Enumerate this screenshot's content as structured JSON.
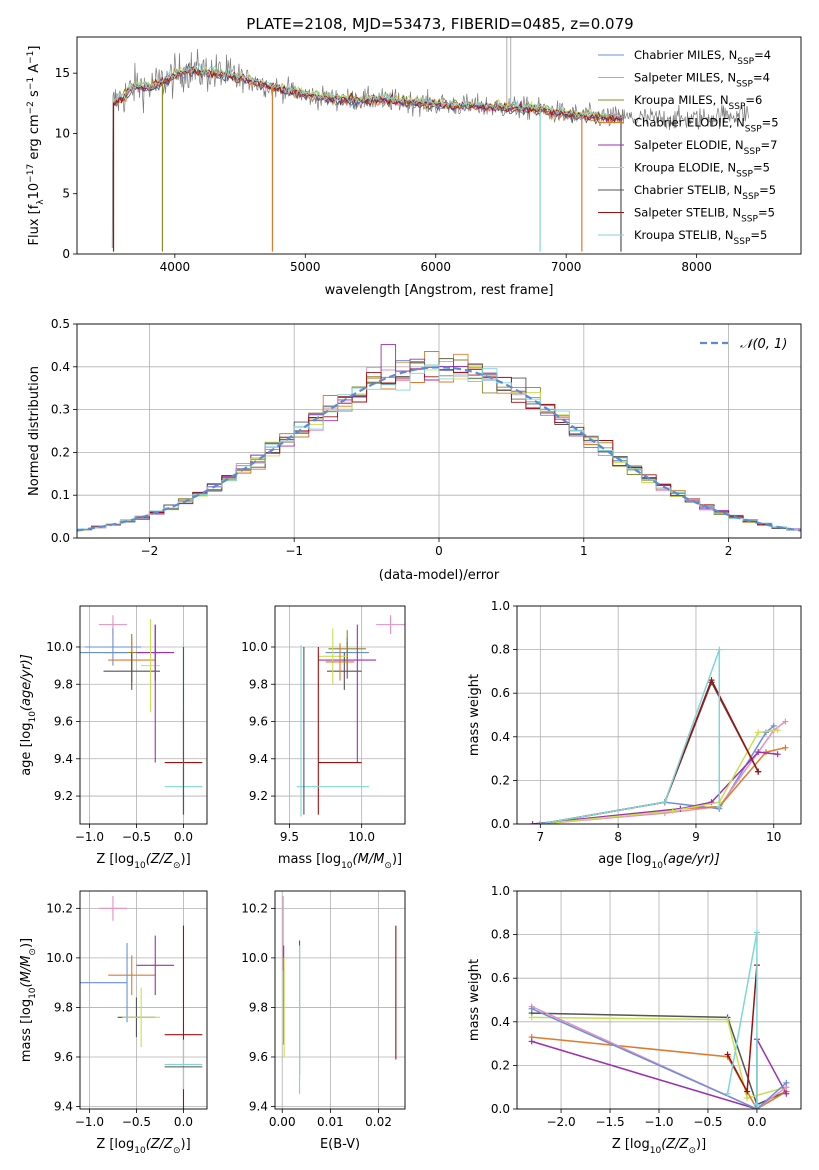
{
  "figure": {
    "title": "PLATE=2108, MJD=53473, FIBERID=0485, z=0.079"
  },
  "chart_data": [
    {
      "id": "spectrum",
      "type": "line",
      "xlabel": "wavelength [Angstrom, rest frame]",
      "ylabel": "Flux [f",
      "ylabel_sub": "λ",
      "ylabel_mid": "10",
      "ylabel_sup1": "−17",
      "ylabel_mid2": " erg cm",
      "ylabel_sup2": "−2",
      "ylabel_mid3": " s",
      "ylabel_sup3": "−1",
      "ylabel_mid4": " A",
      "ylabel_sup4": "−1",
      "ylabel_end": "]",
      "xlim": [
        3250,
        8800
      ],
      "ylim": [
        0,
        18
      ],
      "xticks": [
        4000,
        5000,
        6000,
        7000,
        8000
      ],
      "yticks": [
        0,
        5,
        10,
        15
      ],
      "grid": false,
      "legend_position": "top-right",
      "series": [
        {
          "name": "Chabrier MILES, N",
          "sub": "SSP",
          "n": "=4",
          "color": "#6a8fd8"
        },
        {
          "name": "Salpeter MILES, N",
          "sub": "SSP",
          "n": "=4",
          "color": "#e58fc0"
        },
        {
          "name": "Kroupa MILES, N",
          "sub": "SSP",
          "n": "=6",
          "color": "#8a8a2a"
        },
        {
          "name": "Chabrier ELODIE, N",
          "sub": "SSP",
          "n": "=5",
          "color": "#e07a2a"
        },
        {
          "name": "Salpeter ELODIE, N",
          "sub": "SSP",
          "n": "=7",
          "color": "#9b30b0"
        },
        {
          "name": "Kroupa ELODIE, N",
          "sub": "SSP",
          "n": "=5",
          "color": "#c8e050"
        },
        {
          "name": "Chabrier STELIB, N",
          "sub": "SSP",
          "n": "=5",
          "color": "#555555"
        },
        {
          "name": "Salpeter STELIB, N",
          "sub": "SSP",
          "n": "=5",
          "color": "#a01010"
        },
        {
          "name": "Kroupa STELIB, N",
          "sub": "SSP",
          "n": "=5",
          "color": "#7fd6d6"
        }
      ],
      "continuum": [
        [
          3520,
          12.5
        ],
        [
          3600,
          13.0
        ],
        [
          3700,
          14.0
        ],
        [
          3800,
          13.8
        ],
        [
          3950,
          14.5
        ],
        [
          4100,
          15.3
        ],
        [
          4300,
          15.0
        ],
        [
          4500,
          14.6
        ],
        [
          4700,
          14.0
        ],
        [
          4900,
          13.5
        ],
        [
          5100,
          13.0
        ],
        [
          5300,
          12.8
        ],
        [
          5600,
          12.8
        ],
        [
          5900,
          12.5
        ],
        [
          6200,
          12.3
        ],
        [
          6500,
          12.2
        ],
        [
          6800,
          12.0
        ],
        [
          7000,
          11.6
        ],
        [
          7200,
          11.4
        ],
        [
          7400,
          11.3
        ],
        [
          7700,
          11.2
        ],
        [
          8000,
          11.2
        ],
        [
          8200,
          11.5
        ],
        [
          8400,
          11.7
        ]
      ],
      "drops": [
        [
          3530,
          0.2
        ],
        [
          3905,
          0.2
        ],
        [
          4748,
          0.2
        ],
        [
          6800,
          0.2
        ],
        [
          7120,
          0.2
        ],
        [
          7420,
          0.2
        ]
      ]
    },
    {
      "id": "residuals",
      "type": "histogram",
      "xlabel": "(data-model)/error",
      "ylabel": "Normed distribution",
      "xlim": [
        -2.5,
        2.5
      ],
      "ylim": [
        0,
        0.5
      ],
      "xticks": [
        -2,
        -1,
        0,
        1,
        2
      ],
      "yticks": [
        0.0,
        0.1,
        0.2,
        0.3,
        0.4,
        0.5
      ],
      "grid": true,
      "legend_position": "top-right",
      "legend": "𝒩(0, 1)",
      "bin_width": 0.1,
      "gaussian_color": "#5b8bd6"
    },
    {
      "id": "age-vs-Z",
      "type": "errorbar",
      "xlabel": "Z [log",
      "xlabel_sub": "10",
      "xlabel_rest": "(Z/Z",
      "xlabel_end": ")]",
      "ylabel": "age  [log",
      "ylabel_sub": "10",
      "ylabel_rest": "(age/yr)]",
      "xlim": [
        -1.1,
        0.25
      ],
      "ylim": [
        9.05,
        10.22
      ],
      "xticks": [
        -1.0,
        -0.5,
        0.0
      ],
      "yticks": [
        9.2,
        9.4,
        9.6,
        9.8,
        10.0
      ],
      "grid": true,
      "points": [
        {
          "x": -0.75,
          "y": 10.12,
          "xerr": 0.15,
          "yerr": 0.05,
          "c": 1
        },
        {
          "x": -0.75,
          "y": 10.0,
          "xerr": 0.3,
          "yerr": 0.1,
          "c": 0
        },
        {
          "x": -0.55,
          "y": 9.97,
          "xerr": 0.3,
          "yerr": 0.1,
          "c": 2
        },
        {
          "x": -0.55,
          "y": 9.93,
          "xerr": 0.25,
          "yerr": 0.12,
          "c": 3
        },
        {
          "x": -0.55,
          "y": 9.87,
          "xerr": 0.3,
          "yerr": 0.1,
          "c": 6
        },
        {
          "x": -0.3,
          "y": 9.97,
          "xerr": 0.2,
          "yerr": 0.15,
          "c": 4
        },
        {
          "x": -0.35,
          "y": 9.9,
          "xerr": 0.1,
          "yerr": 0.25,
          "c": 5
        },
        {
          "x": -0.95,
          "y": 9.97,
          "xerr": 0.35,
          "yerr": 0.0,
          "c": 0
        },
        {
          "x": -0.3,
          "y": 9.75,
          "xerr": 0.0,
          "yerr": 0.37,
          "c": 4
        },
        {
          "x": 0.0,
          "y": 9.38,
          "xerr": 0.2,
          "yerr": 0.28,
          "c": 7
        },
        {
          "x": 0.0,
          "y": 9.25,
          "xerr": 0.2,
          "yerr": 0.1,
          "c": 8
        },
        {
          "x": 0.0,
          "y": 9.55,
          "xerr": 0.0,
          "yerr": 0.47,
          "c": 8
        },
        {
          "x": 0.0,
          "y": 9.55,
          "xerr": 0.0,
          "yerr": 0.45,
          "c": 6
        }
      ]
    },
    {
      "id": "age-vs-mass",
      "type": "errorbar",
      "xlabel": "mass [log",
      "xlabel_sub": "10",
      "xlabel_rest": "(M/M",
      "xlabel_end": ")]",
      "xlim": [
        9.4,
        10.3
      ],
      "ylim": [
        9.05,
        10.22
      ],
      "xticks": [
        9.5,
        10.0
      ],
      "yticks": [
        9.2,
        9.4,
        9.6,
        9.8,
        10.0
      ],
      "grid": true,
      "points": [
        {
          "x": 10.2,
          "y": 10.12,
          "xerr": 0.1,
          "yerr": 0.05,
          "c": 1
        },
        {
          "x": 9.9,
          "y": 9.97,
          "xerr": 0.15,
          "yerr": 0.08,
          "c": 0
        },
        {
          "x": 9.9,
          "y": 9.93,
          "xerr": 0.2,
          "yerr": 0.1,
          "c": 4
        },
        {
          "x": 9.9,
          "y": 9.99,
          "xerr": 0.13,
          "yerr": 0.1,
          "c": 2
        },
        {
          "x": 9.88,
          "y": 9.87,
          "xerr": 0.12,
          "yerr": 0.1,
          "c": 6
        },
        {
          "x": 9.8,
          "y": 9.95,
          "xerr": 0.1,
          "yerr": 0.15,
          "c": 5
        },
        {
          "x": 9.85,
          "y": 9.92,
          "xerr": 0.1,
          "yerr": 0.1,
          "c": 3
        },
        {
          "x": 9.97,
          "y": 9.75,
          "xerr": 0.0,
          "yerr": 0.37,
          "c": 4
        },
        {
          "x": 9.85,
          "y": 9.38,
          "xerr": 0.15,
          "yerr": 0.0,
          "c": 7
        },
        {
          "x": 9.7,
          "y": 9.55,
          "xerr": 0.0,
          "yerr": 0.45,
          "c": 7
        },
        {
          "x": 9.8,
          "y": 9.25,
          "xerr": 0.25,
          "yerr": 0.0,
          "c": 8
        },
        {
          "x": 9.58,
          "y": 9.55,
          "xerr": 0.0,
          "yerr": 0.46,
          "c": 8
        },
        {
          "x": 9.6,
          "y": 9.55,
          "xerr": 0.0,
          "yerr": 0.45,
          "c": 6
        }
      ]
    },
    {
      "id": "mass-weight-vs-age",
      "type": "line",
      "xlabel": "age  [log",
      "xlabel_sub": "10",
      "xlabel_rest": "(age/yr)]",
      "ylabel": "mass weight",
      "xlim": [
        6.7,
        10.35
      ],
      "ylim": [
        0,
        1.0
      ],
      "xticks": [
        7,
        8,
        9,
        10
      ],
      "yticks": [
        0.0,
        0.2,
        0.4,
        0.6,
        0.8,
        1.0
      ],
      "grid": true,
      "series": [
        {
          "c": 0,
          "x": [
            7.0,
            8.6,
            9.3,
            9.9,
            10.0
          ],
          "y": [
            0.0,
            0.1,
            0.07,
            0.42,
            0.45
          ]
        },
        {
          "c": 1,
          "x": [
            7.0,
            8.6,
            9.3,
            10.0,
            10.15
          ],
          "y": [
            0.0,
            0.05,
            0.08,
            0.43,
            0.47
          ]
        },
        {
          "c": 3,
          "x": [
            7.0,
            8.8,
            9.3,
            9.9,
            10.15
          ],
          "y": [
            0.0,
            0.07,
            0.08,
            0.33,
            0.35
          ]
        },
        {
          "c": 4,
          "x": [
            6.9,
            8.8,
            9.2,
            9.8,
            10.05
          ],
          "y": [
            0.0,
            0.07,
            0.1,
            0.33,
            0.32
          ]
        },
        {
          "c": 5,
          "x": [
            7.0,
            8.7,
            9.3,
            9.8,
            10.05
          ],
          "y": [
            0.0,
            0.06,
            0.1,
            0.42,
            0.43
          ]
        },
        {
          "c": 6,
          "x": [
            7.0,
            8.6,
            9.2,
            9.8
          ],
          "y": [
            0.0,
            0.1,
            0.65,
            0.24
          ]
        },
        {
          "c": 7,
          "x": [
            7.0,
            8.6,
            9.2,
            9.8
          ],
          "y": [
            0.0,
            0.1,
            0.66,
            0.24
          ]
        },
        {
          "c": 8,
          "x": [
            7.0,
            8.6,
            9.3,
            9.3
          ],
          "y": [
            0.0,
            0.1,
            0.8,
            0.08
          ]
        }
      ]
    },
    {
      "id": "mass-vs-Z",
      "type": "errorbar",
      "xlabel": "Z [log",
      "xlabel_sub": "10",
      "xlabel_rest": "(Z/Z",
      "xlabel_end": ")]",
      "ylabel": "mass [log",
      "ylabel_sub": "10",
      "ylabel_rest": "(M/M",
      "ylabel_end": ")]",
      "xlim": [
        -1.1,
        0.25
      ],
      "ylim": [
        9.39,
        10.27
      ],
      "xticks": [
        -1.0,
        -0.5,
        0.0
      ],
      "yticks": [
        9.4,
        9.6,
        9.8,
        10.0,
        10.2
      ],
      "grid": true,
      "points": [
        {
          "x": -0.75,
          "y": 10.2,
          "xerr": 0.15,
          "yerr": 0.05,
          "c": 1
        },
        {
          "x": -0.55,
          "y": 9.93,
          "xerr": 0.25,
          "yerr": 0.08,
          "c": 3
        },
        {
          "x": -0.3,
          "y": 9.97,
          "xerr": 0.2,
          "yerr": 0.12,
          "c": 4
        },
        {
          "x": -0.6,
          "y": 9.9,
          "xerr": 0.0,
          "yerr": 0.16,
          "c": 0
        },
        {
          "x": -0.95,
          "y": 9.9,
          "xerr": 0.35,
          "yerr": 0.0,
          "c": 0
        },
        {
          "x": -0.5,
          "y": 9.76,
          "xerr": 0.2,
          "yerr": 0.08,
          "c": 6
        },
        {
          "x": -0.45,
          "y": 9.76,
          "xerr": 0.2,
          "yerr": 0.12,
          "c": 5
        },
        {
          "x": 0.0,
          "y": 9.69,
          "xerr": 0.2,
          "yerr": 0.44,
          "c": 7
        },
        {
          "x": 0.0,
          "y": 9.57,
          "xerr": 0.2,
          "yerr": 0.1,
          "c": 8
        },
        {
          "x": 0.0,
          "y": 9.56,
          "xerr": 0.2,
          "yerr": 0.0,
          "c": 6
        }
      ]
    },
    {
      "id": "mass-vs-EBV",
      "type": "errorbar",
      "xlabel": "E(B-V)",
      "xlim": [
        -0.0015,
        0.0255
      ],
      "ylim": [
        9.39,
        10.27
      ],
      "xticks": [
        0.0,
        0.01,
        0.02
      ],
      "yticks": [
        9.4,
        9.6,
        9.8,
        10.0,
        10.2
      ],
      "grid": true,
      "points": [
        {
          "x": 0.0002,
          "y": 10.1,
          "xerr": 0.0,
          "yerr": 0.15,
          "c": 1
        },
        {
          "x": 0.0003,
          "y": 9.85,
          "xerr": 0.0,
          "yerr": 0.2,
          "c": 4
        },
        {
          "x": 0.0004,
          "y": 9.8,
          "xerr": 0.0,
          "yerr": 0.2,
          "c": 5
        },
        {
          "x": 0.0036,
          "y": 9.8,
          "xerr": 0.0,
          "yerr": 0.27,
          "c": 6
        },
        {
          "x": 0.0036,
          "y": 9.75,
          "xerr": 0.0,
          "yerr": 0.3,
          "c": 8
        },
        {
          "x": 0.0236,
          "y": 9.86,
          "xerr": 0.0,
          "yerr": 0.27,
          "c": 7
        }
      ]
    },
    {
      "id": "mass-weight-vs-Z",
      "type": "line",
      "xlabel": "Z [log",
      "xlabel_sub": "10",
      "xlabel_rest": "(Z/Z",
      "xlabel_end": ")]",
      "ylabel": "mass weight",
      "xlim": [
        -2.45,
        0.45
      ],
      "ylim": [
        0,
        1.0
      ],
      "xticks": [
        -2.0,
        -1.5,
        -1.0,
        -0.5,
        0.0
      ],
      "yticks": [
        0.0,
        0.2,
        0.4,
        0.6,
        0.8,
        1.0
      ],
      "grid": true,
      "series": [
        {
          "c": 6,
          "x": [
            -2.3,
            -0.3,
            0.0,
            0.3
          ],
          "y": [
            0.44,
            0.42,
            0.02,
            0.08
          ]
        },
        {
          "c": 5,
          "x": [
            -2.3,
            -0.3,
            -0.1,
            0.3
          ],
          "y": [
            0.42,
            0.41,
            0.05,
            0.1
          ]
        },
        {
          "c": 3,
          "x": [
            -2.3,
            -0.3,
            0.0,
            0.3
          ],
          "y": [
            0.33,
            0.24,
            0.0,
            0.08
          ]
        },
        {
          "c": 4,
          "x": [
            -2.3,
            0.0,
            0.0,
            0.3
          ],
          "y": [
            0.31,
            0.0,
            0.32,
            0.07
          ]
        },
        {
          "c": 1,
          "x": [
            -2.3,
            0.0,
            0.3
          ],
          "y": [
            0.47,
            0.0,
            0.1
          ]
        },
        {
          "c": 0,
          "x": [
            -2.3,
            0.0,
            0.3
          ],
          "y": [
            0.46,
            0.0,
            0.12
          ]
        },
        {
          "c": 7,
          "x": [
            -0.3,
            -0.1,
            0.0
          ],
          "y": [
            0.25,
            0.08,
            0.66
          ]
        },
        {
          "c": 8,
          "x": [
            -0.3,
            0.0,
            0.0
          ],
          "y": [
            0.07,
            0.81,
            0.02
          ]
        }
      ]
    }
  ]
}
